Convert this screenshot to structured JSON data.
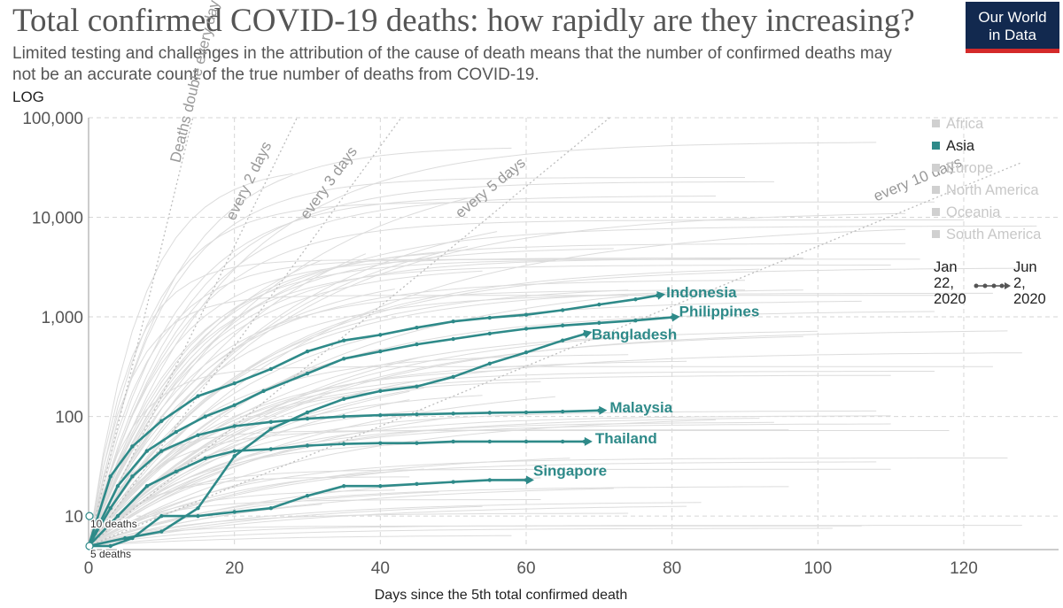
{
  "header": {
    "title": "Total confirmed COVID-19 deaths: how rapidly are they increasing?",
    "subtitle": "Limited testing and challenges in the attribution of the cause of death means that the number of confirmed deaths may not be an accurate count of the true number of deaths from COVID-19.",
    "logo_line1": "Our World",
    "logo_line2": "in Data",
    "scale_label": "LOG"
  },
  "legend": {
    "items": [
      {
        "label": "Africa",
        "active": false
      },
      {
        "label": "Asia",
        "active": true
      },
      {
        "label": "Europe",
        "active": false
      },
      {
        "label": "North America",
        "active": false
      },
      {
        "label": "Oceania",
        "active": false
      },
      {
        "label": "South America",
        "active": false
      }
    ],
    "start_month": "Jan",
    "start_day": "22,",
    "start_year": "2020",
    "end_month": "Jun",
    "end_day": "2,",
    "end_year": "2020"
  },
  "colors": {
    "highlight": "#2e8a89",
    "background_lines": "#dcdcdc",
    "reference_lines": "#bdbdbd",
    "grid": "#d6d6d6"
  },
  "chart_data": {
    "type": "line",
    "title": "Total confirmed COVID-19 deaths: how rapidly are they increasing?",
    "xlabel": "Days since the 5th total confirmed death",
    "ylabel": "",
    "y_scale": "log",
    "xlim": [
      0,
      133
    ],
    "ylim": [
      5,
      100000
    ],
    "x_ticks": [
      0,
      20,
      40,
      60,
      80,
      100,
      120
    ],
    "x_tick_labels": [
      "0",
      "20",
      "40",
      "60",
      "80",
      "100",
      "120"
    ],
    "y_ticks": [
      10,
      100,
      1000,
      10000,
      100000
    ],
    "y_tick_labels": [
      "10",
      "100",
      "1,000",
      "10,000",
      "100,000"
    ],
    "grid": true,
    "legend_position": "right",
    "reference_lines": [
      {
        "label": "Deaths double every day",
        "doubling_days": 1
      },
      {
        "label": "every 2 days",
        "doubling_days": 2
      },
      {
        "label": "every 3 days",
        "doubling_days": 3
      },
      {
        "label": "every 5 days",
        "doubling_days": 5
      },
      {
        "label": "every 10 days",
        "doubling_days": 10
      }
    ],
    "start_annotations": [
      {
        "label": "10 deaths",
        "x": 0,
        "y": 10
      },
      {
        "label": "5 deaths",
        "x": 0,
        "y": 5
      }
    ],
    "series": [
      {
        "name": "Indonesia",
        "x": [
          0,
          3,
          6,
          10,
          15,
          20,
          25,
          30,
          35,
          40,
          45,
          50,
          55,
          60,
          65,
          70,
          75,
          78
        ],
        "y": [
          5,
          25,
          50,
          90,
          160,
          215,
          300,
          450,
          580,
          660,
          780,
          900,
          980,
          1050,
          1170,
          1330,
          1500,
          1640
        ]
      },
      {
        "name": "Philippines",
        "x": [
          0,
          4,
          8,
          12,
          16,
          20,
          24,
          30,
          35,
          40,
          45,
          50,
          55,
          60,
          65,
          70,
          75,
          80
        ],
        "y": [
          5,
          20,
          45,
          70,
          100,
          130,
          180,
          270,
          380,
          450,
          530,
          600,
          680,
          760,
          820,
          870,
          920,
          990
        ]
      },
      {
        "name": "Bangladesh",
        "x": [
          0,
          5,
          10,
          15,
          20,
          25,
          30,
          35,
          40,
          45,
          50,
          55,
          60,
          65,
          68
        ],
        "y": [
          5,
          6,
          7,
          12,
          40,
          75,
          110,
          150,
          180,
          200,
          250,
          340,
          440,
          580,
          672
        ]
      },
      {
        "name": "Malaysia",
        "x": [
          0,
          3,
          6,
          10,
          15,
          20,
          25,
          30,
          35,
          40,
          45,
          50,
          55,
          60,
          65,
          70
        ],
        "y": [
          5,
          12,
          25,
          45,
          65,
          80,
          88,
          95,
          100,
          103,
          105,
          107,
          109,
          110,
          112,
          115
        ]
      },
      {
        "name": "Thailand",
        "x": [
          0,
          4,
          8,
          12,
          16,
          20,
          25,
          30,
          35,
          40,
          45,
          50,
          55,
          60,
          65,
          68
        ],
        "y": [
          5,
          10,
          20,
          28,
          38,
          45,
          47,
          51,
          53,
          54,
          54,
          56,
          56,
          56,
          56,
          56
        ]
      },
      {
        "name": "Singapore",
        "x": [
          0,
          3,
          6,
          10,
          15,
          20,
          25,
          30,
          35,
          40,
          45,
          50,
          55,
          60
        ],
        "y": [
          5,
          5,
          6,
          10,
          10,
          11,
          12,
          16,
          20,
          20,
          21,
          22,
          23,
          23
        ]
      }
    ]
  }
}
